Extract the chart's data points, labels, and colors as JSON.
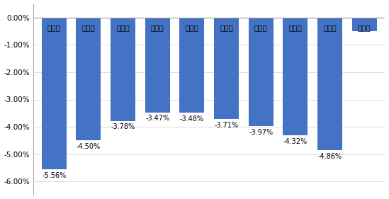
{
  "categories": [
    "第一个",
    "第二个",
    "第三个",
    "第四个",
    "第五个",
    "第六个",
    "第七个",
    "第八个",
    "第九个",
    "第十个"
  ],
  "values": [
    -5.56,
    -4.5,
    -3.78,
    -3.47,
    -3.48,
    -3.71,
    -3.97,
    -4.32,
    -4.86,
    -0.5
  ],
  "bar_color": "#4472C4",
  "ylim": [
    -6.5,
    0.5
  ],
  "yticks": [
    0.0,
    -1.0,
    -2.0,
    -3.0,
    -4.0,
    -5.0,
    -6.0
  ],
  "value_labels": [
    "-5.56%",
    "-4.50%",
    "-3.78%",
    "-3.47%",
    "-3.48%",
    "-3.71%",
    "-3.97%",
    "-4.32%",
    "-4.86%",
    ""
  ],
  "background_color": "#FFFFFF"
}
